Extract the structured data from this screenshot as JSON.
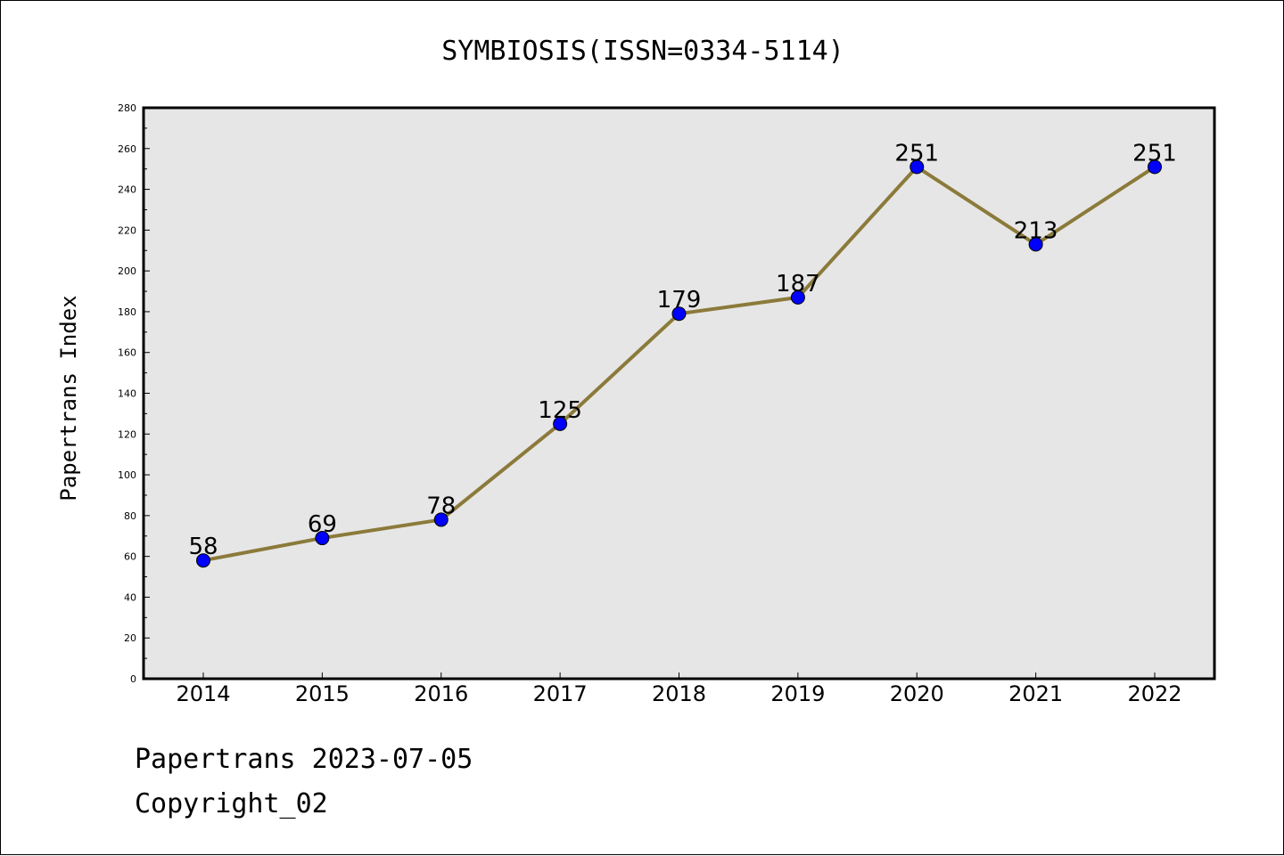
{
  "chart_data": {
    "type": "line",
    "title": "SYMBIOSIS(ISSN=0334-5114)",
    "xlabel": "",
    "ylabel": "Papertrans Index",
    "categories": [
      "2014",
      "2015",
      "2016",
      "2017",
      "2018",
      "2019",
      "2020",
      "2021",
      "2022"
    ],
    "series": [
      {
        "values": [
          58,
          69,
          78,
          125,
          179,
          187,
          251,
          213,
          251
        ]
      }
    ],
    "ylim": [
      0,
      280
    ],
    "yticks": [
      0,
      20,
      40,
      60,
      80,
      100,
      120,
      140,
      160,
      180,
      200,
      220,
      240,
      260,
      280
    ],
    "grid": false,
    "data_labels": true,
    "colors": {
      "line": "#8b7a3a",
      "marker": "#0000ff",
      "plot_background": "#e6e6e6",
      "axes_border": "#000000"
    }
  },
  "footer": {
    "line1": "Papertrans 2023-07-05",
    "line2": "Copyright_02"
  }
}
